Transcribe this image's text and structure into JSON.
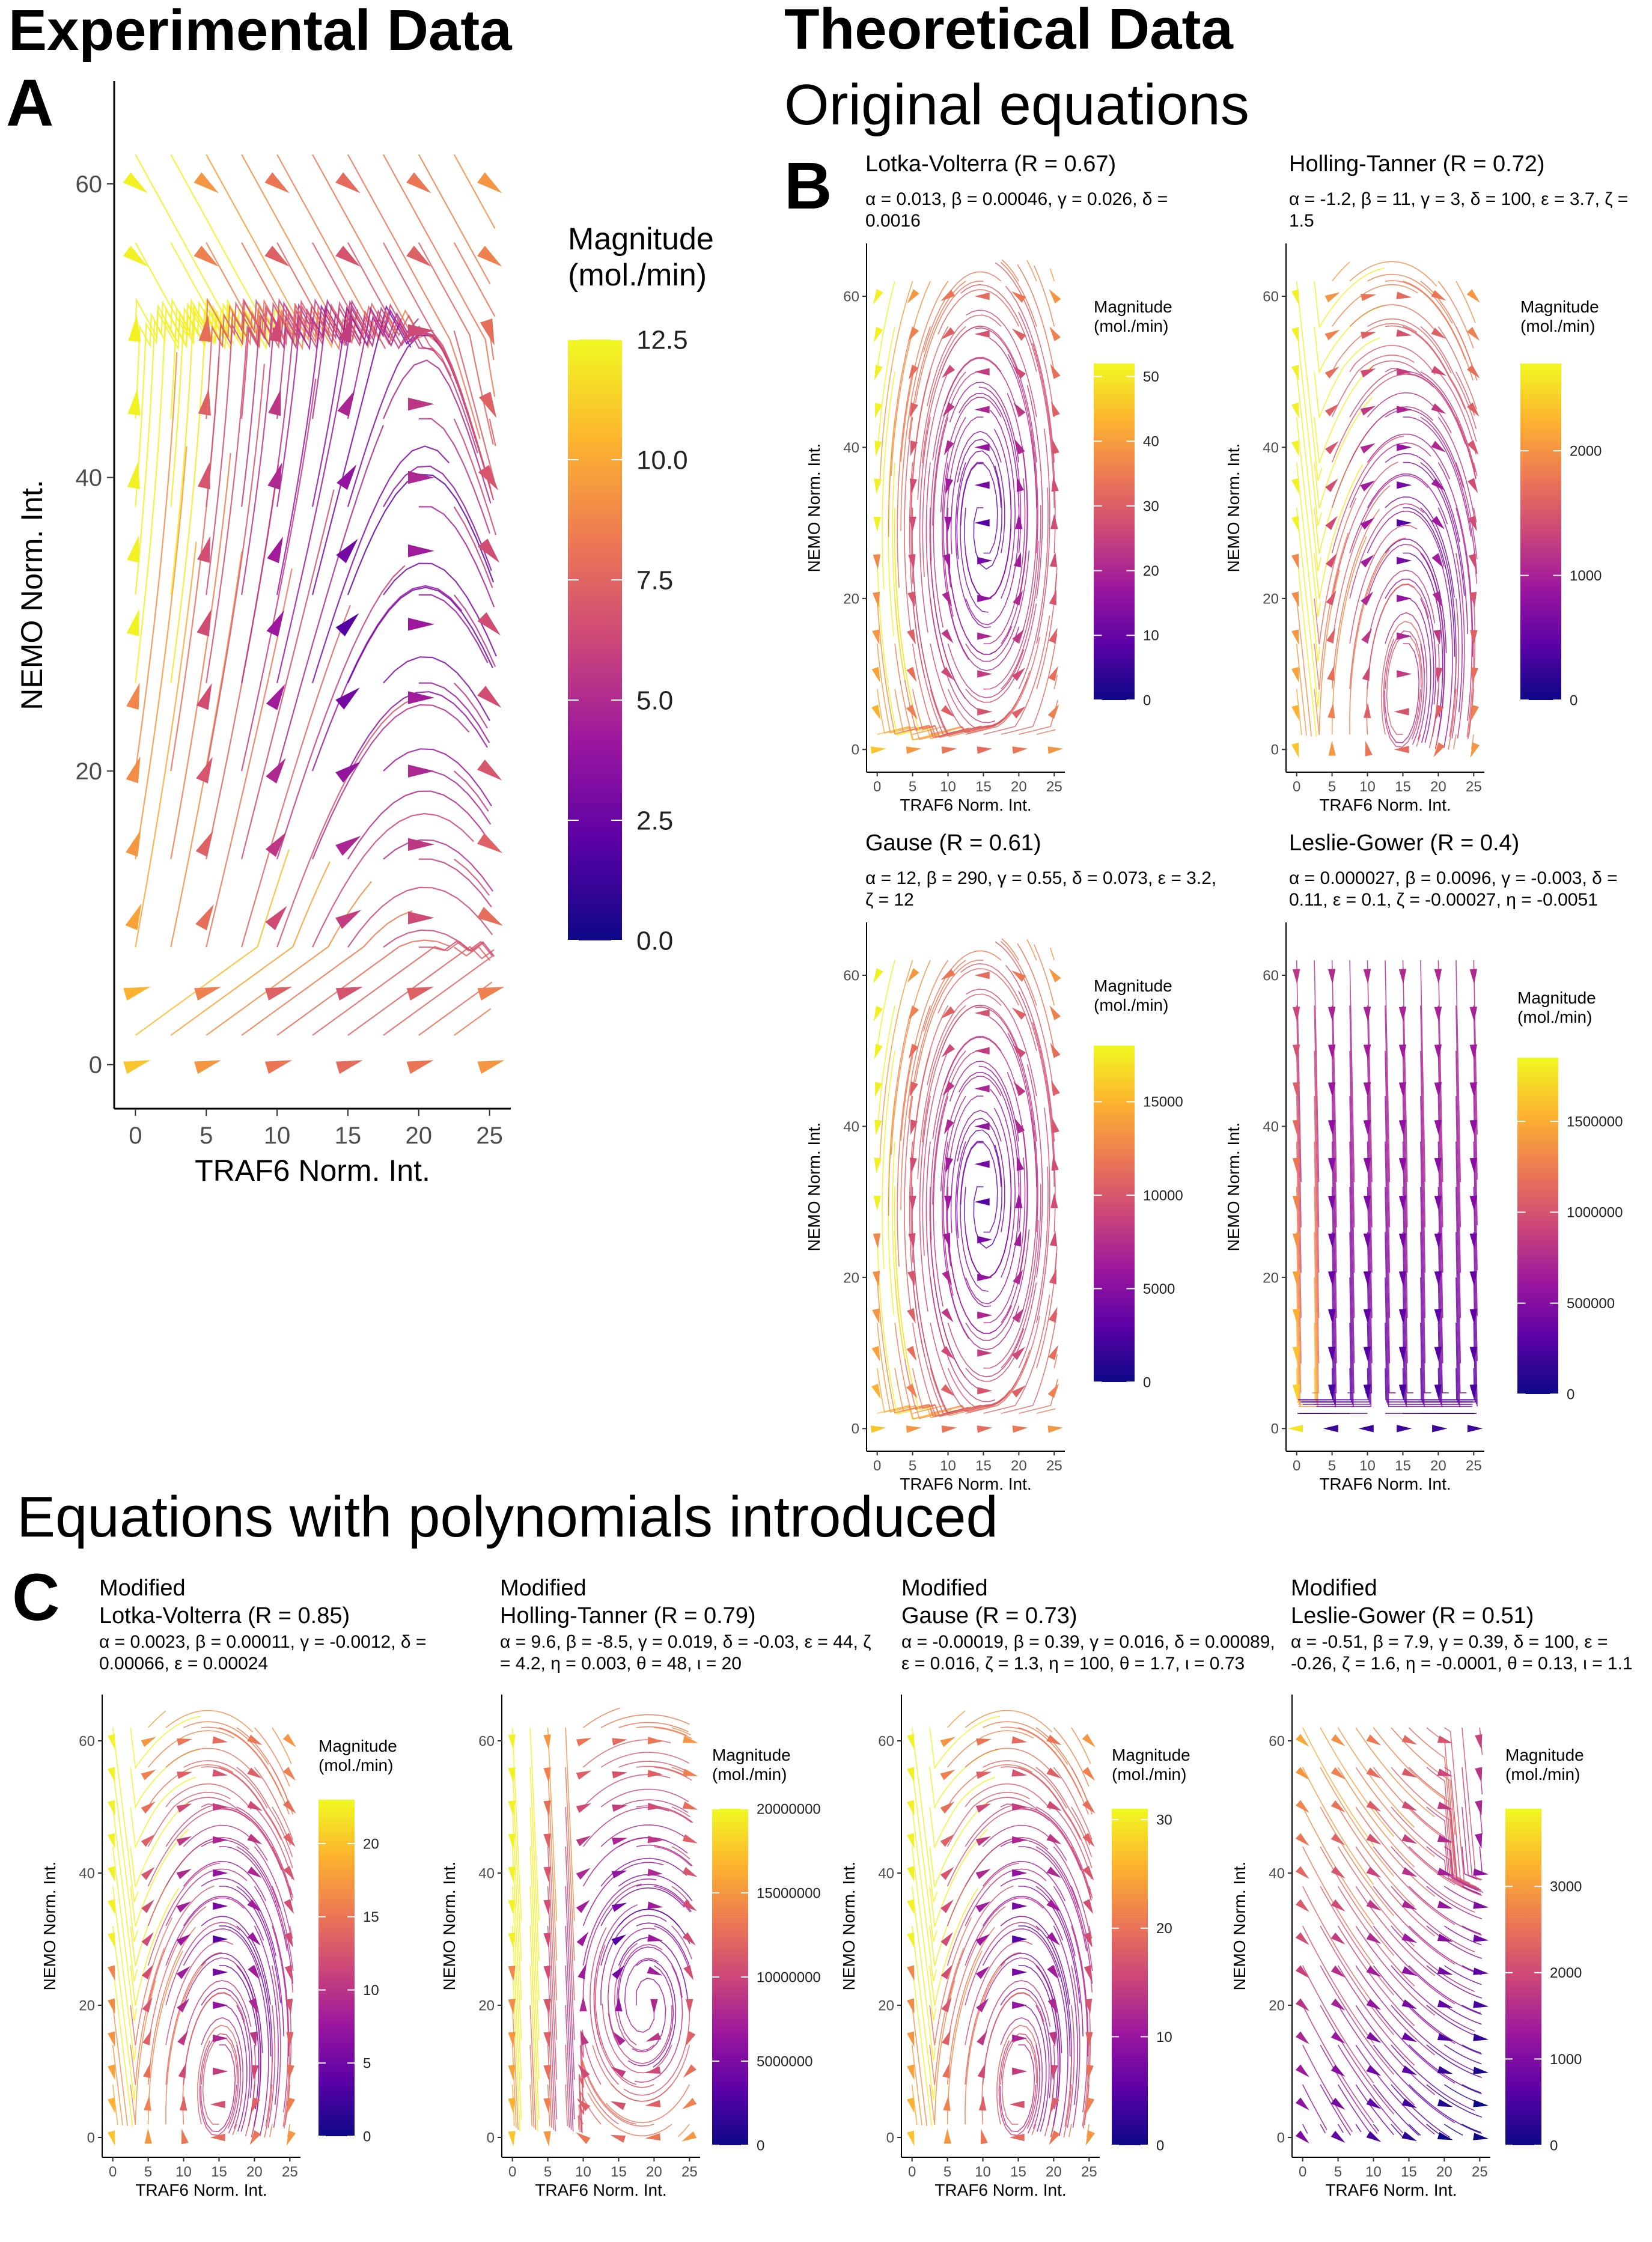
{
  "headers": {
    "experimental": "Experimental Data",
    "theoretical": "Theoretical Data",
    "original": "Original equations",
    "polynomials": "Equations with polynomials introduced"
  },
  "panel_letters": {
    "a": "A",
    "b": "B",
    "c": "C"
  },
  "palette": [
    "#0d0887",
    "#5c01a6",
    "#9c179e",
    "#cc4778",
    "#ed7953",
    "#fdb42f",
    "#f0f921"
  ],
  "chart_data": [
    {
      "id": "exp",
      "type": "streamplot",
      "title": "",
      "xlabel": "TRAF6 Norm. Int.",
      "ylabel": "NEMO Norm. Int.",
      "xlim": [
        -1.5,
        26.5
      ],
      "ylim": [
        -3,
        67
      ],
      "xticks": [
        0,
        5,
        10,
        15,
        20,
        25
      ],
      "yticks": [
        0,
        20,
        40,
        60
      ],
      "legend": {
        "title": [
          "Magnitude",
          "(mol./min)"
        ],
        "min": 0,
        "max": 12.5,
        "ticks": [
          0,
          2.5,
          5,
          7.5,
          10,
          12.5
        ],
        "tick_labels": [
          "0.0",
          "2.5",
          "5.0",
          "7.5",
          "10.0",
          "12.5"
        ]
      }
    },
    {
      "id": "lv",
      "type": "streamplot",
      "title": "Lotka-Volterra (R = 0.67)",
      "title_prefix": "",
      "params": "α = 0.013, β = 0.00046, γ = 0.026, δ = 0.0016",
      "xlabel": "TRAF6 Norm. Int.",
      "ylabel": "NEMO Norm. Int.",
      "xlim": [
        -1.5,
        26.5
      ],
      "ylim": [
        -3,
        67
      ],
      "xticks": [
        0,
        5,
        10,
        15,
        20,
        25
      ],
      "yticks": [
        0,
        20,
        40,
        60
      ],
      "legend": {
        "title": [
          "Magnitude",
          "(mol./min)"
        ],
        "min": 0,
        "max": 52,
        "ticks": [
          0,
          10,
          20,
          30,
          40,
          50
        ],
        "tick_labels": [
          "0",
          "10",
          "20",
          "30",
          "40",
          "50"
        ]
      }
    },
    {
      "id": "ht",
      "type": "streamplot",
      "title": "Holling-Tanner (R = 0.72)",
      "params": "α = -1.2, β = 11, γ = 3, δ = 100, ε = 3.7, ζ = 1.5",
      "xlabel": "TRAF6 Norm. Int.",
      "ylabel": "NEMO Norm. Int.",
      "xlim": [
        -1.5,
        26.5
      ],
      "ylim": [
        -3,
        67
      ],
      "xticks": [
        0,
        5,
        10,
        15,
        20,
        25
      ],
      "yticks": [
        0,
        20,
        40,
        60
      ],
      "legend": {
        "title": [
          "Magnitude",
          "(mol./min)"
        ],
        "min": 0,
        "max": 2700,
        "ticks": [
          0,
          1000,
          2000
        ],
        "tick_labels": [
          "0",
          "1000",
          "2000"
        ]
      }
    },
    {
      "id": "ga",
      "type": "streamplot",
      "title": "Gause (R = 0.61)",
      "params": "α = 12, β = 290, γ = 0.55, δ = 0.073, ε = 3.2, ζ = 12",
      "xlabel": "TRAF6 Norm. Int.",
      "ylabel": "NEMO Norm. Int.",
      "xlim": [
        -1.5,
        26.5
      ],
      "ylim": [
        -3,
        67
      ],
      "xticks": [
        0,
        5,
        10,
        15,
        20,
        25
      ],
      "yticks": [
        0,
        20,
        40,
        60
      ],
      "legend": {
        "title": [
          "Magnitude",
          "(mol./min)"
        ],
        "min": 0,
        "max": 18000,
        "ticks": [
          0,
          5000,
          10000,
          15000
        ],
        "tick_labels": [
          "0",
          "5000",
          "10000",
          "15000"
        ]
      }
    },
    {
      "id": "lg",
      "type": "streamplot",
      "title": "Leslie-Gower (R = 0.4)",
      "params": "α = 0.000027, β = 0.0096, γ = -0.003, δ = 0.11, ε = 0.1, ζ = -0.00027, η = -0.0051",
      "xlabel": "TRAF6 Norm. Int.",
      "ylabel": "NEMO Norm. Int.",
      "xlim": [
        -1.5,
        26.5
      ],
      "ylim": [
        -3,
        67
      ],
      "xticks": [
        0,
        5,
        10,
        15,
        20,
        25
      ],
      "yticks": [
        0,
        20,
        40,
        60
      ],
      "legend": {
        "title": [
          "Magnitude",
          "(mol./min)"
        ],
        "min": 0,
        "max": 1850000,
        "ticks": [
          0,
          500000,
          1000000,
          1500000
        ],
        "tick_labels": [
          "0",
          "500000",
          "1000000",
          "1500000"
        ]
      }
    },
    {
      "id": "mlv",
      "type": "streamplot",
      "title": "Modified Lotka-Volterra (R = 0.85)",
      "title_lines": [
        "Modified",
        "Lotka-Volterra (R = 0.85)"
      ],
      "params": "α = 0.0023, β = 0.00011, γ = -0.0012, δ = 0.00066, ε = 0.00024",
      "xlabel": "TRAF6 Norm. Int.",
      "ylabel": "NEMO Norm. Int.",
      "xlim": [
        -1.5,
        26.5
      ],
      "ylim": [
        -3,
        67
      ],
      "xticks": [
        0,
        5,
        10,
        15,
        20,
        25
      ],
      "yticks": [
        0,
        20,
        40,
        60
      ],
      "legend": {
        "title": [
          "Magnitude",
          "(mol./min)"
        ],
        "min": 0,
        "max": 23,
        "ticks": [
          0,
          5,
          10,
          15,
          20
        ],
        "tick_labels": [
          "0",
          "5",
          "10",
          "15",
          "20"
        ]
      }
    },
    {
      "id": "mht",
      "type": "streamplot",
      "title": "Modified Holling-Tanner (R = 0.79)",
      "title_lines": [
        "Modified",
        "Holling-Tanner (R = 0.79)"
      ],
      "params": "α = 9.6, β = -8.5, γ = 0.019, δ = -0.03, ε = 44, ζ = 4.2, η = 0.003, θ = 48, ι = 20",
      "xlabel": "TRAF6 Norm. Int.",
      "ylabel": "NEMO Norm. Int.",
      "xlim": [
        -1.5,
        26.5
      ],
      "ylim": [
        -3,
        67
      ],
      "xticks": [
        0,
        5,
        10,
        15,
        20,
        25
      ],
      "yticks": [
        0,
        20,
        40,
        60
      ],
      "legend": {
        "title": [
          "Magnitude",
          "(mol./min)"
        ],
        "min": 0,
        "max": 20000000,
        "ticks": [
          0,
          5000000,
          10000000,
          15000000,
          20000000
        ],
        "tick_labels": [
          "0",
          "5000000",
          "10000000",
          "15000000",
          "20000000"
        ]
      }
    },
    {
      "id": "mga",
      "type": "streamplot",
      "title": "Modified Gause (R = 0.73)",
      "title_lines": [
        "Modified",
        "Gause (R = 0.73)"
      ],
      "params": "α = -0.00019, β = 0.39, γ = 0.016, δ = 0.00089, ε = 0.016, ζ = 1.3, η = 100, θ = 1.7, ι = 0.73",
      "xlabel": "TRAF6 Norm. Int.",
      "ylabel": "NEMO Norm. Int.",
      "xlim": [
        -1.5,
        26.5
      ],
      "ylim": [
        -3,
        67
      ],
      "xticks": [
        0,
        5,
        10,
        15,
        20,
        25
      ],
      "yticks": [
        0,
        20,
        40,
        60
      ],
      "legend": {
        "title": [
          "Magnitude",
          "(mol./min)"
        ],
        "min": 0,
        "max": 31,
        "ticks": [
          0,
          10,
          20,
          30
        ],
        "tick_labels": [
          "0",
          "10",
          "20",
          "30"
        ]
      }
    },
    {
      "id": "mlg",
      "type": "streamplot",
      "title": "Modified Leslie-Gower (R = 0.51)",
      "title_lines": [
        "Modified",
        "Leslie-Gower (R = 0.51)"
      ],
      "params": "α = -0.51, β = 7.9, γ = 0.39, δ = 100, ε = -0.26, ζ = 1.6, η = -0.0001, θ = 0.13, ι = 1.1",
      "xlabel": "TRAF6 Norm. Int.",
      "ylabel": "NEMO Norm. Int.",
      "xlim": [
        -1.5,
        26.5
      ],
      "ylim": [
        -3,
        67
      ],
      "xticks": [
        0,
        5,
        10,
        15,
        20,
        25
      ],
      "yticks": [
        0,
        20,
        40,
        60
      ],
      "legend": {
        "title": [
          "Magnitude",
          "(mol./min)"
        ],
        "min": 0,
        "max": 3900,
        "ticks": [
          0,
          1000,
          2000,
          3000
        ],
        "tick_labels": [
          "0",
          "1000",
          "2000",
          "3000"
        ]
      }
    }
  ]
}
